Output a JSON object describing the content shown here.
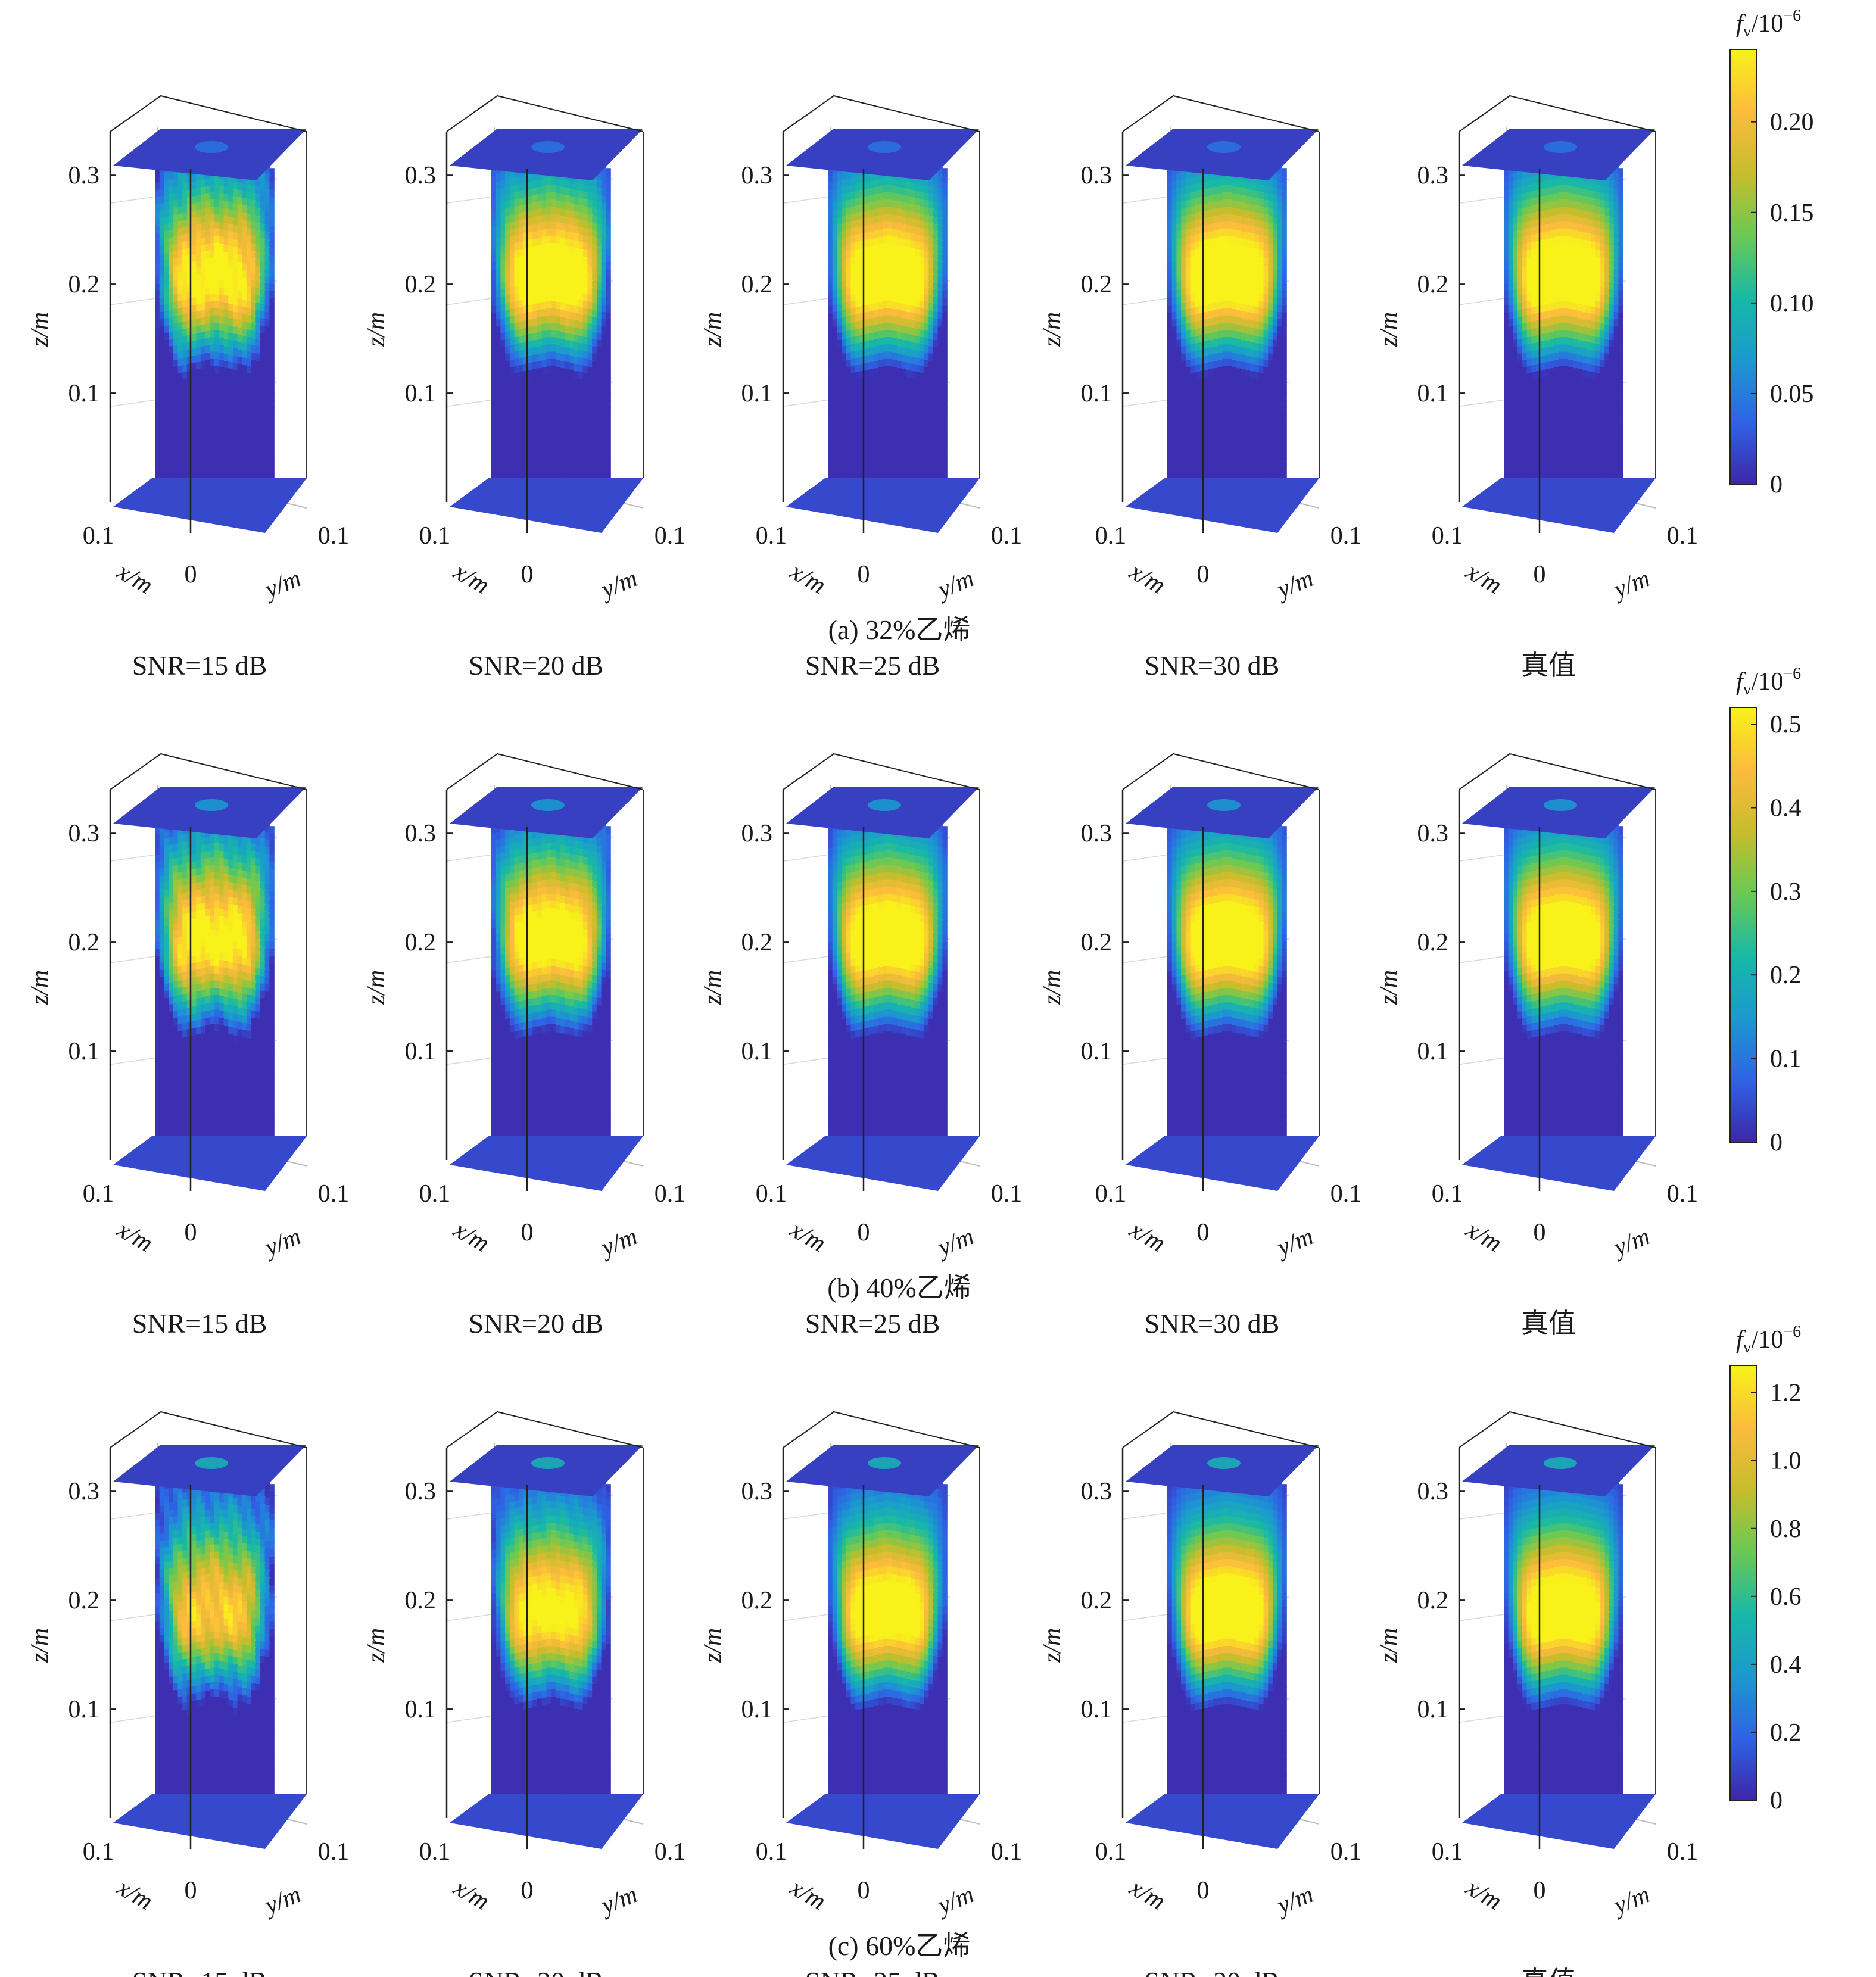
{
  "chart_data": {
    "type": "heatmap",
    "panel_labels": [
      "SNR=15 dB",
      "SNR=20 dB",
      "SNR=25 dB",
      "SNR=30 dB",
      "真值"
    ],
    "axes": {
      "xlabel": "x/m",
      "ylabel": "y/m",
      "zlabel": "z/m",
      "xlim": [
        0,
        0.1
      ],
      "ylim": [
        0,
        0.1
      ],
      "zlim": [
        0,
        0.34
      ],
      "x_ticks": [
        "0.1",
        "0"
      ],
      "y_ticks": [
        "0.1"
      ],
      "z_ticks": [
        0.1,
        0.2,
        0.3
      ],
      "z_tick_labels": [
        "0.1",
        "0.2",
        "0.3"
      ]
    },
    "colormap": [
      "#3e26a8",
      "#2f63e6",
      "#1b99cf",
      "#18b9a6",
      "#6ac953",
      "#c7bd2c",
      "#fcbb3d",
      "#f8f21a"
    ],
    "groups": [
      {
        "caption": "(a) 32%乙烯",
        "colorbar": {
          "label_base": "f",
          "label_sub": "v",
          "label_unit": "/10",
          "label_exp": "−6",
          "ticks": [
            0,
            0.05,
            0.1,
            0.15,
            0.2
          ],
          "tick_labels": [
            "0",
            "0.05",
            "0.10",
            "0.15",
            "0.20"
          ],
          "max": 0.24
        },
        "peak": [
          0.86,
          0.94,
          0.96,
          0.98,
          0.98
        ],
        "noise": [
          0.55,
          0.25,
          0.12,
          0.06,
          0.0
        ],
        "center_z": 0.22
      },
      {
        "caption": "(b) 40%乙烯",
        "colorbar": {
          "label_base": "f",
          "label_sub": "v",
          "label_unit": "/10",
          "label_exp": "−6",
          "ticks": [
            0,
            0.1,
            0.2,
            0.3,
            0.4,
            0.5
          ],
          "tick_labels": [
            "0",
            "0.1",
            "0.2",
            "0.3",
            "0.4",
            "0.5"
          ],
          "max": 0.52
        },
        "peak": [
          0.86,
          0.92,
          0.96,
          0.97,
          0.97
        ],
        "noise": [
          0.55,
          0.28,
          0.12,
          0.06,
          0.0
        ],
        "center_z": 0.215
      },
      {
        "caption": "(c) 60%乙烯",
        "colorbar": {
          "label_base": "f",
          "label_sub": "v",
          "label_unit": "/10",
          "label_exp": "−6",
          "ticks": [
            0,
            0.2,
            0.4,
            0.6,
            0.8,
            1.0,
            1.2
          ],
          "tick_labels": [
            "0",
            "0.2",
            "0.4",
            "0.6",
            "0.8",
            "1.0",
            "1.2"
          ],
          "max": 1.28
        },
        "peak": [
          0.72,
          0.86,
          0.94,
          0.97,
          0.96
        ],
        "noise": [
          0.65,
          0.32,
          0.14,
          0.06,
          0.0
        ],
        "center_z": 0.2
      }
    ]
  }
}
